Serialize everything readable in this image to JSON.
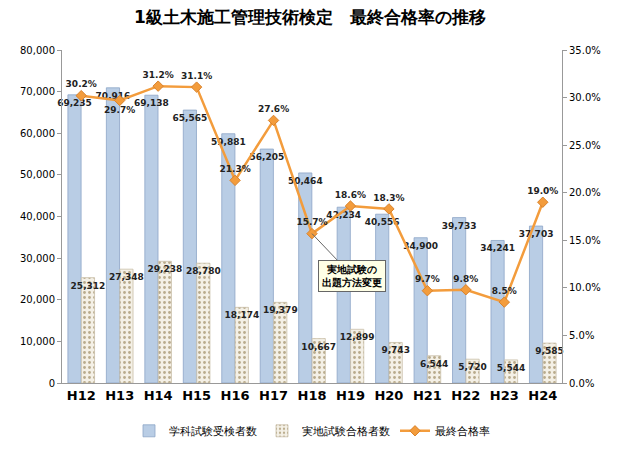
{
  "chart_data": {
    "type": "bar",
    "title": "1級土木施工管理技術検定　最終合格率の推移",
    "categories": [
      "H12",
      "H13",
      "H14",
      "H15",
      "H16",
      "H17",
      "H18",
      "H19",
      "H20",
      "H21",
      "H22",
      "H23",
      "H24"
    ],
    "series": [
      {
        "name": "学科試験受検者数",
        "type": "bar",
        "color": "#b9cde5",
        "values": [
          69235,
          70916,
          69138,
          65565,
          59881,
          56205,
          50464,
          42234,
          40556,
          34900,
          39733,
          34241,
          37703
        ],
        "value_labels": [
          "69,235",
          "70,916",
          "69,138",
          "65,565",
          "59,881",
          "56,205",
          "50,464",
          "42,234",
          "40,556",
          "34,900",
          "39,733",
          "34,241",
          "37,703"
        ]
      },
      {
        "name": "実地試験合格者数",
        "type": "bar",
        "color": "#f4f0e6",
        "marker": "dotted",
        "values": [
          25312,
          27348,
          29238,
          28780,
          18174,
          19379,
          10667,
          12899,
          9743,
          6544,
          5720,
          5544,
          9585
        ],
        "value_labels": [
          "25,312",
          "27,348",
          "29,238",
          "28,780",
          "18,174",
          "19,379",
          "10,667",
          "12,899",
          "9,743",
          "6,544",
          "5,720",
          "5,544",
          "9,585"
        ]
      },
      {
        "name": "最終合格率",
        "type": "line",
        "axis": "y2",
        "color": "#f39c3c",
        "marker": "diamond",
        "line_style": "solid",
        "values": [
          30.2,
          29.7,
          31.2,
          31.1,
          21.3,
          27.6,
          15.7,
          18.6,
          18.3,
          9.7,
          9.8,
          8.5,
          19.0
        ],
        "value_labels": [
          "30.2%",
          "29.7%",
          "31.2%",
          "31.1%",
          "21.3%",
          "27.6%",
          "15.7%",
          "18.6%",
          "18.3%",
          "9.7%",
          "9.8%",
          "8.5%",
          "19.0%"
        ]
      }
    ],
    "ylim": [
      0,
      80000
    ],
    "yticks": [
      0,
      {
        "value": 10000,
        "label": "10,000"
      },
      {
        "value": 20000,
        "label": "20,000"
      },
      {
        "value": 30000,
        "label": "30,000"
      },
      {
        "value": 40000,
        "label": "40,000"
      },
      {
        "value": 50000,
        "label": "50,000"
      },
      {
        "value": 60000,
        "label": "60,000"
      },
      {
        "value": 70000,
        "label": "70,000"
      },
      {
        "value": 80000,
        "label": "80,000"
      }
    ],
    "y2lim": [
      0,
      35
    ],
    "y2ticks": [
      {
        "value": 0,
        "label": "0.0%"
      },
      {
        "value": 5,
        "label": "5.0%"
      },
      {
        "value": 10,
        "label": "10.0%"
      },
      {
        "value": 15,
        "label": "15.0%"
      },
      {
        "value": 20,
        "label": "20.0%"
      },
      {
        "value": 25,
        "label": "25.0%"
      },
      {
        "value": 30,
        "label": "30.0%"
      },
      {
        "value": 35,
        "label": "35.0%"
      }
    ],
    "grid": false,
    "legend": "bottom",
    "data_labels": true,
    "annotations": [
      {
        "text": "実地試験の\n出題方法変更",
        "x": "H18",
        "y": 15.7,
        "axis": "y2"
      }
    ]
  }
}
